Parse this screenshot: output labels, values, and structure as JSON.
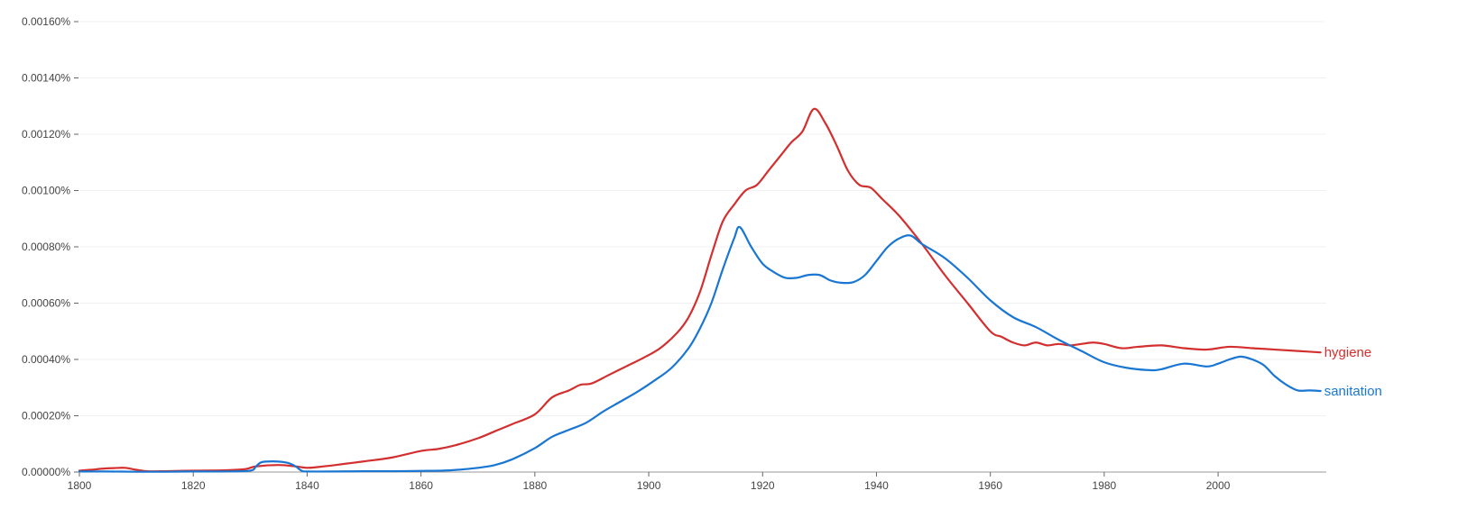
{
  "chart_data": {
    "type": "line",
    "xlim": [
      1800,
      2019
    ],
    "ylim": [
      0,
      0.0016
    ],
    "x_ticks": [
      {
        "value": 1800,
        "label": "1800"
      },
      {
        "value": 1820,
        "label": "1820"
      },
      {
        "value": 1840,
        "label": "1840"
      },
      {
        "value": 1860,
        "label": "1860"
      },
      {
        "value": 1880,
        "label": "1880"
      },
      {
        "value": 1900,
        "label": "1900"
      },
      {
        "value": 1920,
        "label": "1920"
      },
      {
        "value": 1940,
        "label": "1940"
      },
      {
        "value": 1960,
        "label": "1960"
      },
      {
        "value": 1980,
        "label": "1980"
      },
      {
        "value": 2000,
        "label": "2000"
      }
    ],
    "y_ticks": [
      {
        "value": 0,
        "label": "0.00000%"
      },
      {
        "value": 0.0002,
        "label": "0.00020%"
      },
      {
        "value": 0.0004,
        "label": "0.00040%"
      },
      {
        "value": 0.0006,
        "label": "0.00060%"
      },
      {
        "value": 0.0008,
        "label": "0.00080%"
      },
      {
        "value": 0.001,
        "label": "0.00100%"
      },
      {
        "value": 0.0012,
        "label": "0.00120%"
      },
      {
        "value": 0.0014,
        "label": "0.00140%"
      },
      {
        "value": 0.0016,
        "label": "0.00160%"
      }
    ],
    "grid": true,
    "legend": "inline labels at right end of lines",
    "series": [
      {
        "name": "hygiene",
        "color": "#d32f2f",
        "x": [
          1800,
          1802,
          1804,
          1806,
          1808,
          1810,
          1812,
          1815,
          1820,
          1825,
          1829,
          1831,
          1835,
          1838,
          1840,
          1842,
          1845,
          1850,
          1855,
          1860,
          1863,
          1866,
          1870,
          1873,
          1876,
          1880,
          1883,
          1886,
          1888,
          1890,
          1893,
          1896,
          1899,
          1902,
          1905,
          1907,
          1909,
          1911,
          1913,
          1915,
          1917,
          1919,
          1921,
          1923,
          1925,
          1927,
          1929,
          1931,
          1933,
          1935,
          1937,
          1939,
          1941,
          1944,
          1948,
          1952,
          1956,
          1960,
          1962,
          1964,
          1966,
          1968,
          1970,
          1972,
          1974,
          1976,
          1978,
          1980,
          1983,
          1986,
          1990,
          1994,
          1998,
          2002,
          2006,
          2010,
          2014,
          2018
        ],
        "y": [
          5e-06,
          8e-06,
          1.2e-05,
          1.4e-05,
          1.5e-05,
          8e-06,
          3e-06,
          3e-06,
          5e-06,
          6e-06,
          1e-05,
          2e-05,
          2.5e-05,
          2e-05,
          1.5e-05,
          1.8e-05,
          2.5e-05,
          3.8e-05,
          5.2e-05,
          7.5e-05,
          8.2e-05,
          9.5e-05,
          0.00012,
          0.000145,
          0.00017,
          0.000205,
          0.000265,
          0.00029,
          0.00031,
          0.000315,
          0.000345,
          0.000375,
          0.000405,
          0.00044,
          0.000495,
          0.00055,
          0.00064,
          0.00077,
          0.00089,
          0.00095,
          0.001,
          0.00102,
          0.00107,
          0.00112,
          0.00117,
          0.00121,
          0.00129,
          0.00124,
          0.00116,
          0.00107,
          0.00102,
          0.00101,
          0.00097,
          0.00091,
          0.00081,
          0.0007,
          0.0006,
          0.0005,
          0.00048,
          0.00046,
          0.00045,
          0.00046,
          0.00045,
          0.000455,
          0.00045,
          0.000455,
          0.00046,
          0.000455,
          0.00044,
          0.000445,
          0.00045,
          0.00044,
          0.000435,
          0.000445,
          0.00044,
          0.000435,
          0.00043,
          0.000425
        ]
      },
      {
        "name": "sanitation",
        "color": "#1976d2",
        "x": [
          1800,
          1805,
          1810,
          1815,
          1820,
          1825,
          1830,
          1831,
          1832,
          1834,
          1836,
          1837,
          1838,
          1839,
          1840,
          1845,
          1850,
          1855,
          1860,
          1865,
          1870,
          1873,
          1876,
          1880,
          1883,
          1886,
          1889,
          1892,
          1895,
          1898,
          1901,
          1904,
          1907,
          1909,
          1911,
          1913,
          1915,
          1916,
          1918,
          1920,
          1922,
          1924,
          1926,
          1928,
          1930,
          1932,
          1934,
          1936,
          1938,
          1940,
          1942,
          1944,
          1946,
          1948,
          1952,
          1956,
          1960,
          1964,
          1968,
          1972,
          1976,
          1980,
          1984,
          1988,
          1990,
          1994,
          1998,
          2000,
          2002,
          2004,
          2006,
          2008,
          2010,
          2012,
          2014,
          2016,
          2018
        ],
        "y": [
          2e-06,
          2e-06,
          1e-06,
          1e-06,
          2e-06,
          2e-06,
          5e-06,
          2e-05,
          3.5e-05,
          3.8e-05,
          3.5e-05,
          3e-05,
          2e-05,
          5e-06,
          2e-06,
          2e-06,
          3e-06,
          3e-06,
          4e-06,
          6e-06,
          1.5e-05,
          2.5e-05,
          4.5e-05,
          8.5e-05,
          0.000125,
          0.00015,
          0.000175,
          0.000215,
          0.00025,
          0.000285,
          0.000325,
          0.00037,
          0.00044,
          0.00051,
          0.0006,
          0.00072,
          0.00083,
          0.00087,
          0.0008,
          0.00074,
          0.00071,
          0.00069,
          0.00069,
          0.0007,
          0.0007,
          0.00068,
          0.000672,
          0.000675,
          0.0007,
          0.00075,
          0.0008,
          0.00083,
          0.00084,
          0.00081,
          0.00076,
          0.00069,
          0.00061,
          0.00055,
          0.000515,
          0.00047,
          0.00043,
          0.00039,
          0.00037,
          0.000362,
          0.000365,
          0.000385,
          0.000375,
          0.000385,
          0.0004,
          0.00041,
          0.0004,
          0.00038,
          0.00034,
          0.00031,
          0.00029,
          0.00029,
          0.000288
        ]
      }
    ]
  }
}
